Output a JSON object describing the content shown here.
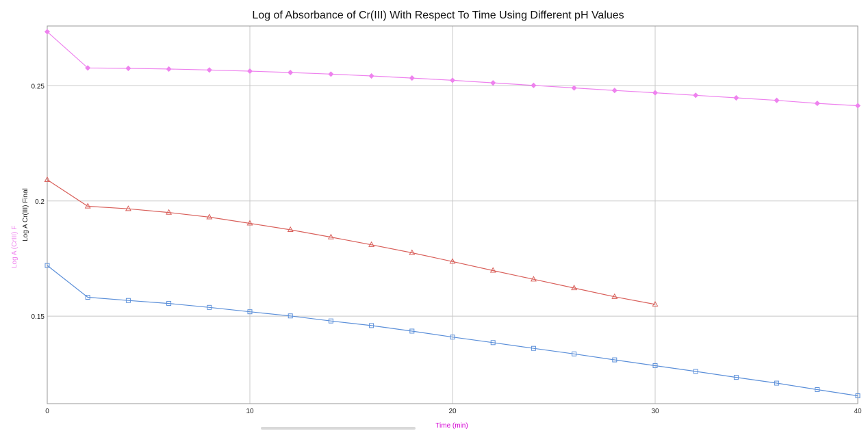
{
  "chart_data": {
    "type": "line",
    "title": "Log of Absorbance of Cr(III) With Respect To Time Using Different pH Values",
    "xlabel": "Time (min)",
    "ylabel_primary": "Log A Cr(III) Final",
    "ylabel_secondary": "Log A (CrIII) F",
    "xlim": [
      0,
      40
    ],
    "ylim": [
      0.112,
      0.276
    ],
    "x_ticks": [
      0,
      10,
      20,
      30,
      40
    ],
    "y_ticks": [
      0.15,
      0.2,
      0.25
    ],
    "x_tick_labels": [
      "0",
      "10",
      "20",
      "30",
      "40"
    ],
    "y_tick_labels": [
      "0.15",
      "0.2",
      "0.25"
    ],
    "grid": true,
    "series": [
      {
        "color": "#ee82ee",
        "marker": "diamond",
        "x": [
          0,
          2,
          4,
          6,
          8,
          10,
          12,
          14,
          16,
          18,
          20,
          22,
          24,
          26,
          28,
          30,
          32,
          34,
          36,
          38,
          40
        ],
        "values": [
          0.2735,
          0.2578,
          0.2576,
          0.2573,
          0.2569,
          0.2564,
          0.2558,
          0.2551,
          0.2543,
          0.2534,
          0.2524,
          0.2513,
          0.2502,
          0.2491,
          0.248,
          0.247,
          0.2459,
          0.2448,
          0.2437,
          0.2424,
          0.2414
        ]
      },
      {
        "color": "#d9605b",
        "marker": "triangle",
        "x": [
          0,
          2,
          4,
          6,
          8,
          10,
          12,
          14,
          16,
          18,
          20,
          22,
          24,
          26,
          28,
          30
        ],
        "values": [
          0.2092,
          0.1977,
          0.1966,
          0.195,
          0.193,
          0.1903,
          0.1875,
          0.1843,
          0.181,
          0.1775,
          0.1737,
          0.1698,
          0.166,
          0.1622,
          0.1584,
          0.1551
        ]
      },
      {
        "color": "#5b8fd9",
        "marker": "square",
        "x": [
          0,
          2,
          4,
          6,
          8,
          10,
          12,
          14,
          16,
          18,
          20,
          22,
          24,
          26,
          28,
          30,
          32,
          34,
          36,
          38,
          40
        ],
        "values": [
          0.172,
          0.1582,
          0.1568,
          0.1555,
          0.1538,
          0.1519,
          0.1501,
          0.1479,
          0.1459,
          0.1435,
          0.1409,
          0.1385,
          0.136,
          0.1336,
          0.131,
          0.1285,
          0.126,
          0.1234,
          0.1209,
          0.1181,
          0.1154
        ]
      }
    ],
    "colors": {
      "title": "#111111",
      "xlabel": "#d400d4",
      "ylabel_primary": "#222222",
      "ylabel_secondary": "#ee82ee",
      "grid": "#c8c8c8"
    }
  }
}
